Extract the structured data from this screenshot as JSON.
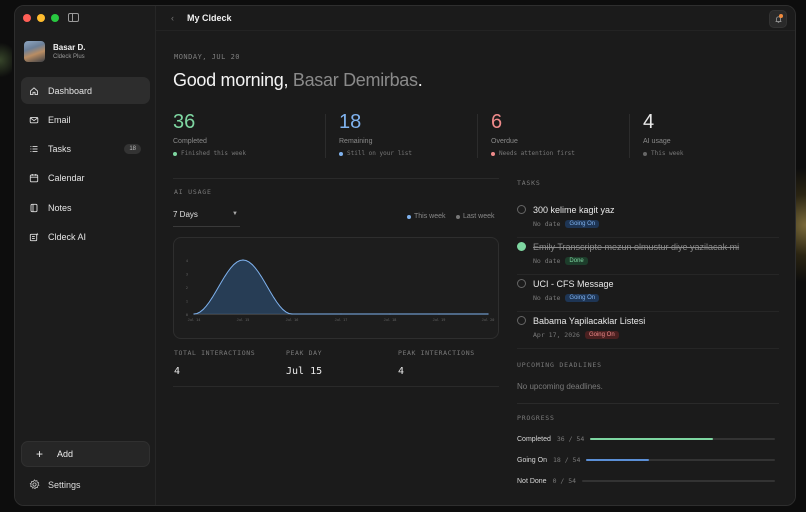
{
  "window": {
    "title": "My Cldeck"
  },
  "profile": {
    "name": "Basar D.",
    "plan": "Cldeck Plus"
  },
  "sidebar": {
    "items": [
      {
        "label": "Dashboard",
        "icon": "home-icon",
        "active": true
      },
      {
        "label": "Email",
        "icon": "mail-icon"
      },
      {
        "label": "Tasks",
        "icon": "list-icon",
        "badge": "18"
      },
      {
        "label": "Calendar",
        "icon": "calendar-icon"
      },
      {
        "label": "Notes",
        "icon": "notes-icon"
      },
      {
        "label": "Cldeck AI",
        "icon": "ai-icon"
      }
    ],
    "add_label": "Add",
    "settings_label": "Settings"
  },
  "header": {
    "date": "MONDAY, JUL 20",
    "greeting": "Good morning, ",
    "user": "Basar Demirbas",
    "punct": "."
  },
  "stats": [
    {
      "value": "36",
      "label": "Completed",
      "sub": "Finished this week",
      "color": "#7ed6a1"
    },
    {
      "value": "18",
      "label": "Remaining",
      "sub": "Still on your list",
      "color": "#7fb2ee"
    },
    {
      "value": "6",
      "label": "Overdue",
      "sub": "Needs attention first",
      "color": "#ee8a8a"
    },
    {
      "value": "4",
      "label": "AI usage",
      "sub": "This week",
      "color": "#e8e8e8"
    }
  ],
  "ai_usage": {
    "section_label": "AI USAGE",
    "range": "7 Days",
    "legend_this": "This week",
    "legend_last": "Last week",
    "total_label": "TOTAL INTERACTIONS",
    "total_value": "4",
    "peak_day_label": "PEAK DAY",
    "peak_day_value": "Jul 15",
    "peak_int_label": "PEAK INTERACTIONS",
    "peak_int_value": "4"
  },
  "chart_data": {
    "type": "area",
    "x": [
      "Jul 14",
      "Jul 15",
      "Jul 16",
      "Jul 17",
      "Jul 18",
      "Jul 19",
      "Jul 20"
    ],
    "series": [
      {
        "values": [
          0,
          4,
          0,
          0,
          0,
          0,
          0
        ],
        "color": "#7fb2ee"
      },
      {
        "values": [
          0,
          0,
          0,
          0,
          0,
          0,
          0
        ],
        "color": "#777777"
      }
    ],
    "ylim": [
      0,
      4
    ],
    "yticks": [
      "0",
      "1",
      "2",
      "3",
      "4"
    ],
    "grid": false
  },
  "tasks": {
    "section_label": "TASKS",
    "items": [
      {
        "title": "300 kelime kagit yaz",
        "meta": "No date",
        "status": "Going On",
        "kind": "going",
        "done": false
      },
      {
        "title": "Emily Transcripte mezun olmustur diye yazilacak mi",
        "meta": "No date",
        "status": "Done",
        "kind": "done",
        "done": true
      },
      {
        "title": "UCI - CFS Message",
        "meta": "No date",
        "status": "Going On",
        "kind": "going",
        "done": false
      },
      {
        "title": "Babama Yapilacaklar Listesi",
        "meta": "Apr 17, 2026",
        "status": "Going On",
        "kind": "on",
        "done": false
      }
    ]
  },
  "deadlines": {
    "section_label": "UPCOMING DEADLINES",
    "empty": "No upcoming deadlines."
  },
  "progress": {
    "section_label": "PROGRESS",
    "rows": [
      {
        "label": "Completed",
        "count": "36 / 54",
        "fraction": 0.667,
        "color": "#7ed6a1"
      },
      {
        "label": "Going On",
        "count": "18 / 54",
        "fraction": 0.333,
        "color": "#5b8fd6"
      },
      {
        "label": "Not Done",
        "count": "0 / 54",
        "fraction": 0,
        "color": "#777777"
      }
    ]
  },
  "colors": {
    "accent_red": "#ff5f57",
    "accent_yellow": "#febc2e",
    "accent_green": "#28c840",
    "notification": "#f08a3c"
  }
}
